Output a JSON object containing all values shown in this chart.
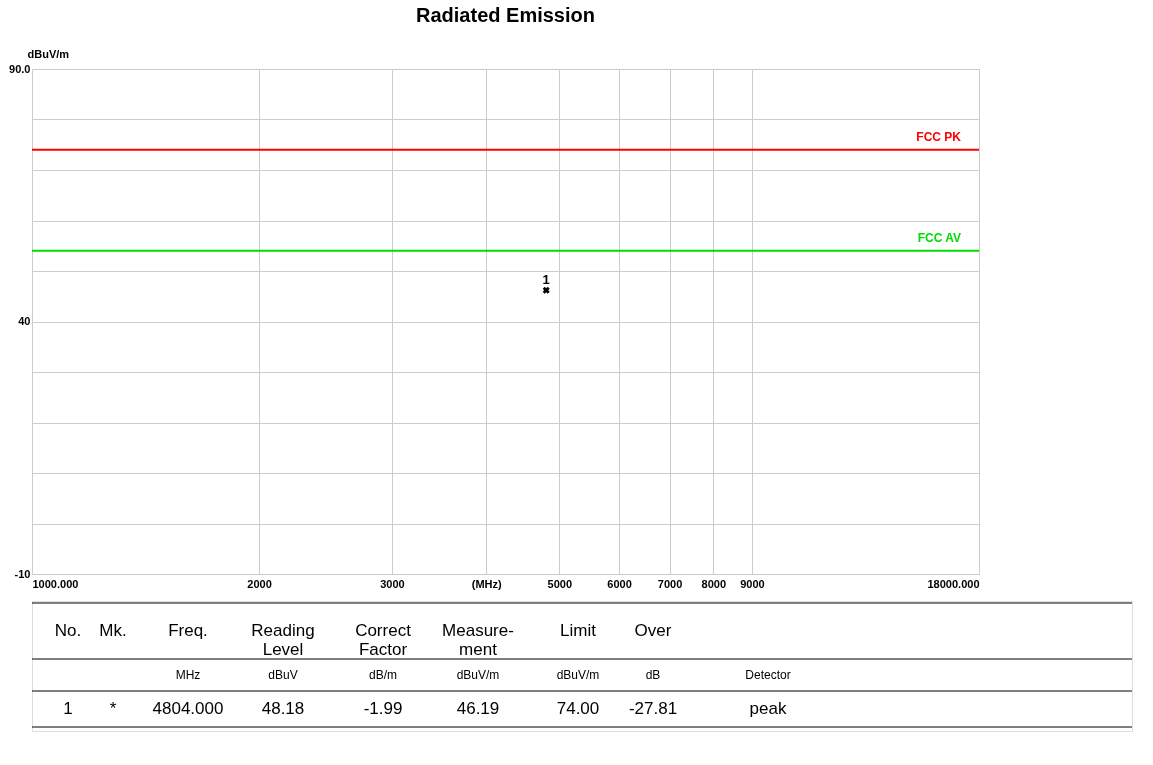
{
  "chart_data": {
    "type": "scatter",
    "title": "Radiated Emission",
    "ylabel": "dBuV/m",
    "x": [
      4804
    ],
    "values": [
      46.19
    ],
    "color": "#000000",
    "marker": "cross",
    "xlim": [
      1000,
      18000
    ],
    "ylim": [
      -10,
      90
    ],
    "log": "x",
    "grid": true,
    "xticks": [
      {
        "value": 1000,
        "label": "1000.000"
      },
      2000,
      3000,
      {
        "value": 4000,
        "label": "(MHz)"
      },
      5000,
      6000,
      7000,
      8000,
      9000,
      {
        "value": 18000,
        "label": "18000.000"
      }
    ],
    "yticks": [
      {
        "value": -10,
        "label": "-10"
      },
      {
        "value": 0,
        "label": null
      },
      {
        "value": 10,
        "label": null
      },
      {
        "value": 20,
        "label": null
      },
      {
        "value": 30,
        "label": null
      },
      40,
      {
        "value": 50,
        "label": null
      },
      {
        "value": 60,
        "label": null
      },
      {
        "value": 70,
        "label": null
      },
      {
        "value": 80,
        "label": null
      },
      {
        "value": 90,
        "label": "90.0"
      }
    ],
    "ref_lines": [
      {
        "axis": "y",
        "value": 74,
        "label": "FCC PK",
        "color": "#ff0000"
      },
      {
        "axis": "y",
        "value": 54,
        "label": "FCC AV",
        "color": "#00dd00"
      }
    ],
    "annotations": [
      {
        "text": "1",
        "x": 4804,
        "y": 46.19
      },
      "No.",
      "Mk.",
      "Freq.",
      "Reading\nLevel",
      "Correct\nFactor",
      "Measure-\nment",
      "Limit",
      "Over",
      "MHz",
      "dBuV",
      "dB/m",
      "dBuV/m",
      "dBuV/m",
      "dB",
      "Detector",
      "1",
      "*",
      "4804.000",
      "48.18",
      "-1.99",
      "46.19",
      "74.00",
      "-27.81",
      "peak"
    ]
  }
}
